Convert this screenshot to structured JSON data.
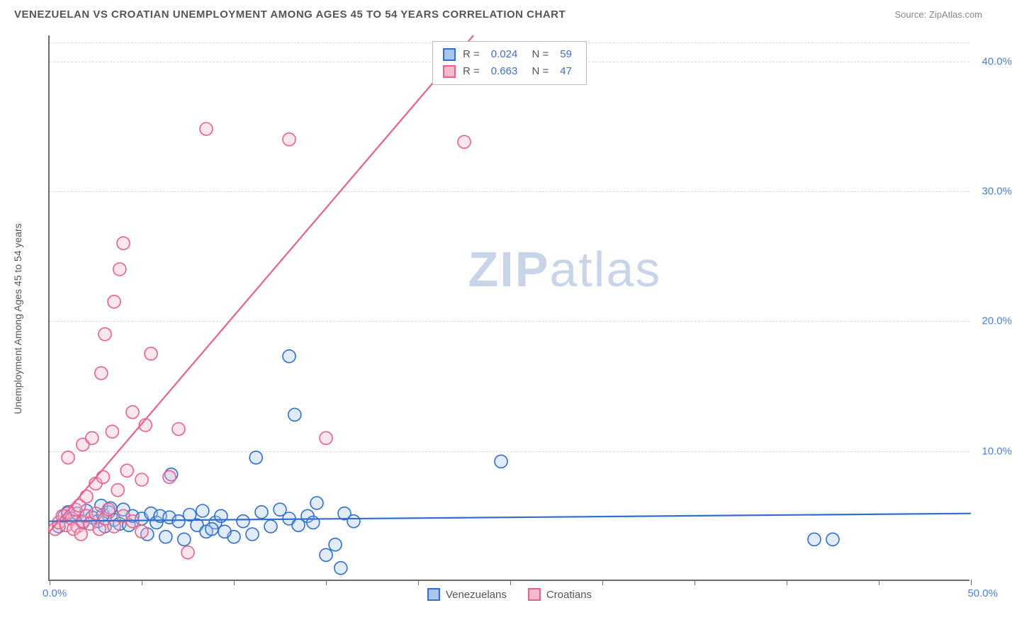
{
  "header": {
    "title": "VENEZUELAN VS CROATIAN UNEMPLOYMENT AMONG AGES 45 TO 54 YEARS CORRELATION CHART",
    "source": "Source: ZipAtlas.com"
  },
  "chart": {
    "type": "scatter",
    "y_axis_label": "Unemployment Among Ages 45 to 54 years",
    "watermark_text": "ZIPatlas",
    "background_color": "#ffffff",
    "axis_color": "#6b6b6b",
    "grid_color": "#d8d8d8",
    "tick_label_color": "#4a7fd4",
    "text_color": "#555555",
    "xlim": [
      0,
      50
    ],
    "ylim": [
      0,
      42
    ],
    "x_ticks": [
      0,
      5,
      10,
      15,
      20,
      25,
      30,
      35,
      40,
      45,
      50
    ],
    "y_gridlines": [
      10,
      20,
      30,
      40
    ],
    "y_tick_labels": [
      "10.0%",
      "20.0%",
      "30.0%",
      "40.0%"
    ],
    "x_origin_label": "0.0%",
    "x_max_label": "50.0%",
    "marker_radius": 9,
    "marker_stroke_width": 1.6,
    "marker_fill_opacity": 0.35,
    "line_width": 2.2,
    "series": [
      {
        "name": "Venezuelans",
        "stroke": "#2f6fd0",
        "fill": "#a9c6ef",
        "stats": {
          "R": "0.024",
          "N": "59"
        },
        "trend": {
          "x1": 0,
          "y1": 4.6,
          "x2": 50,
          "y2": 5.2
        },
        "points": [
          [
            0.5,
            4.2
          ],
          [
            0.8,
            5.0
          ],
          [
            1.0,
            5.3
          ],
          [
            1.2,
            4.8
          ],
          [
            1.5,
            5.2
          ],
          [
            1.8,
            4.5
          ],
          [
            2.0,
            5.4
          ],
          [
            2.3,
            4.9
          ],
          [
            2.6,
            4.6
          ],
          [
            2.9,
            5.1
          ],
          [
            3.2,
            5.3
          ],
          [
            3.5,
            4.7
          ],
          [
            3.8,
            4.4
          ],
          [
            4.0,
            5.5
          ],
          [
            4.3,
            4.3
          ],
          [
            4.5,
            5.0
          ],
          [
            5.0,
            4.8
          ],
          [
            5.3,
            3.6
          ],
          [
            5.5,
            5.2
          ],
          [
            5.8,
            4.5
          ],
          [
            6.0,
            5.0
          ],
          [
            6.3,
            3.4
          ],
          [
            6.5,
            4.9
          ],
          [
            6.6,
            8.2
          ],
          [
            7.0,
            4.6
          ],
          [
            7.3,
            3.2
          ],
          [
            7.6,
            5.1
          ],
          [
            8.0,
            4.3
          ],
          [
            8.3,
            5.4
          ],
          [
            8.5,
            3.8
          ],
          [
            9.0,
            4.5
          ],
          [
            9.3,
            5.0
          ],
          [
            10.0,
            3.4
          ],
          [
            10.5,
            4.6
          ],
          [
            11.0,
            3.6
          ],
          [
            11.2,
            9.5
          ],
          [
            11.5,
            5.3
          ],
          [
            12.0,
            4.2
          ],
          [
            12.5,
            5.5
          ],
          [
            13.0,
            4.8
          ],
          [
            13.0,
            17.3
          ],
          [
            13.3,
            12.8
          ],
          [
            13.5,
            4.3
          ],
          [
            14.0,
            5.0
          ],
          [
            14.3,
            4.5
          ],
          [
            14.5,
            6.0
          ],
          [
            15.0,
            2.0
          ],
          [
            15.5,
            2.8
          ],
          [
            15.8,
            1.0
          ],
          [
            16.0,
            5.2
          ],
          [
            16.5,
            4.6
          ],
          [
            24.5,
            9.2
          ],
          [
            41.5,
            3.2
          ],
          [
            42.5,
            3.2
          ],
          [
            2.8,
            5.8
          ],
          [
            3.0,
            4.2
          ],
          [
            3.3,
            5.6
          ],
          [
            8.8,
            4.0
          ],
          [
            9.5,
            3.8
          ]
        ]
      },
      {
        "name": "Croatians",
        "stroke": "#e8618c",
        "fill": "#f6b8cf",
        "stats": {
          "R": "0.663",
          "N": "47"
        },
        "trend": {
          "x1": 0,
          "y1": 3.8,
          "x2": 23,
          "y2": 42
        },
        "points": [
          [
            0.3,
            4.0
          ],
          [
            0.5,
            4.5
          ],
          [
            0.7,
            5.0
          ],
          [
            0.9,
            4.3
          ],
          [
            1.0,
            5.2
          ],
          [
            1.0,
            9.5
          ],
          [
            1.2,
            4.8
          ],
          [
            1.4,
            5.5
          ],
          [
            1.5,
            4.2
          ],
          [
            1.6,
            5.8
          ],
          [
            1.8,
            4.6
          ],
          [
            1.8,
            10.5
          ],
          [
            2.0,
            5.0
          ],
          [
            2.0,
            6.5
          ],
          [
            2.2,
            4.4
          ],
          [
            2.3,
            11.0
          ],
          [
            2.5,
            5.2
          ],
          [
            2.5,
            7.5
          ],
          [
            2.7,
            4.0
          ],
          [
            2.8,
            16.0
          ],
          [
            2.9,
            8.0
          ],
          [
            3.0,
            4.8
          ],
          [
            3.0,
            19.0
          ],
          [
            3.2,
            5.5
          ],
          [
            3.4,
            11.5
          ],
          [
            3.5,
            4.2
          ],
          [
            3.5,
            21.5
          ],
          [
            3.7,
            7.0
          ],
          [
            3.8,
            24.0
          ],
          [
            4.0,
            5.0
          ],
          [
            4.0,
            26.0
          ],
          [
            4.2,
            8.5
          ],
          [
            4.5,
            4.6
          ],
          [
            4.5,
            13.0
          ],
          [
            5.0,
            3.8
          ],
          [
            5.0,
            7.8
          ],
          [
            5.2,
            12.0
          ],
          [
            5.5,
            17.5
          ],
          [
            6.5,
            8.0
          ],
          [
            7.0,
            11.7
          ],
          [
            7.5,
            2.2
          ],
          [
            8.5,
            34.8
          ],
          [
            13.0,
            34.0
          ],
          [
            15.0,
            11.0
          ],
          [
            22.5,
            33.8
          ],
          [
            1.3,
            4.0
          ],
          [
            1.7,
            3.6
          ]
        ]
      }
    ],
    "legend": {
      "items": [
        "Venezuelans",
        "Croatians"
      ]
    }
  }
}
